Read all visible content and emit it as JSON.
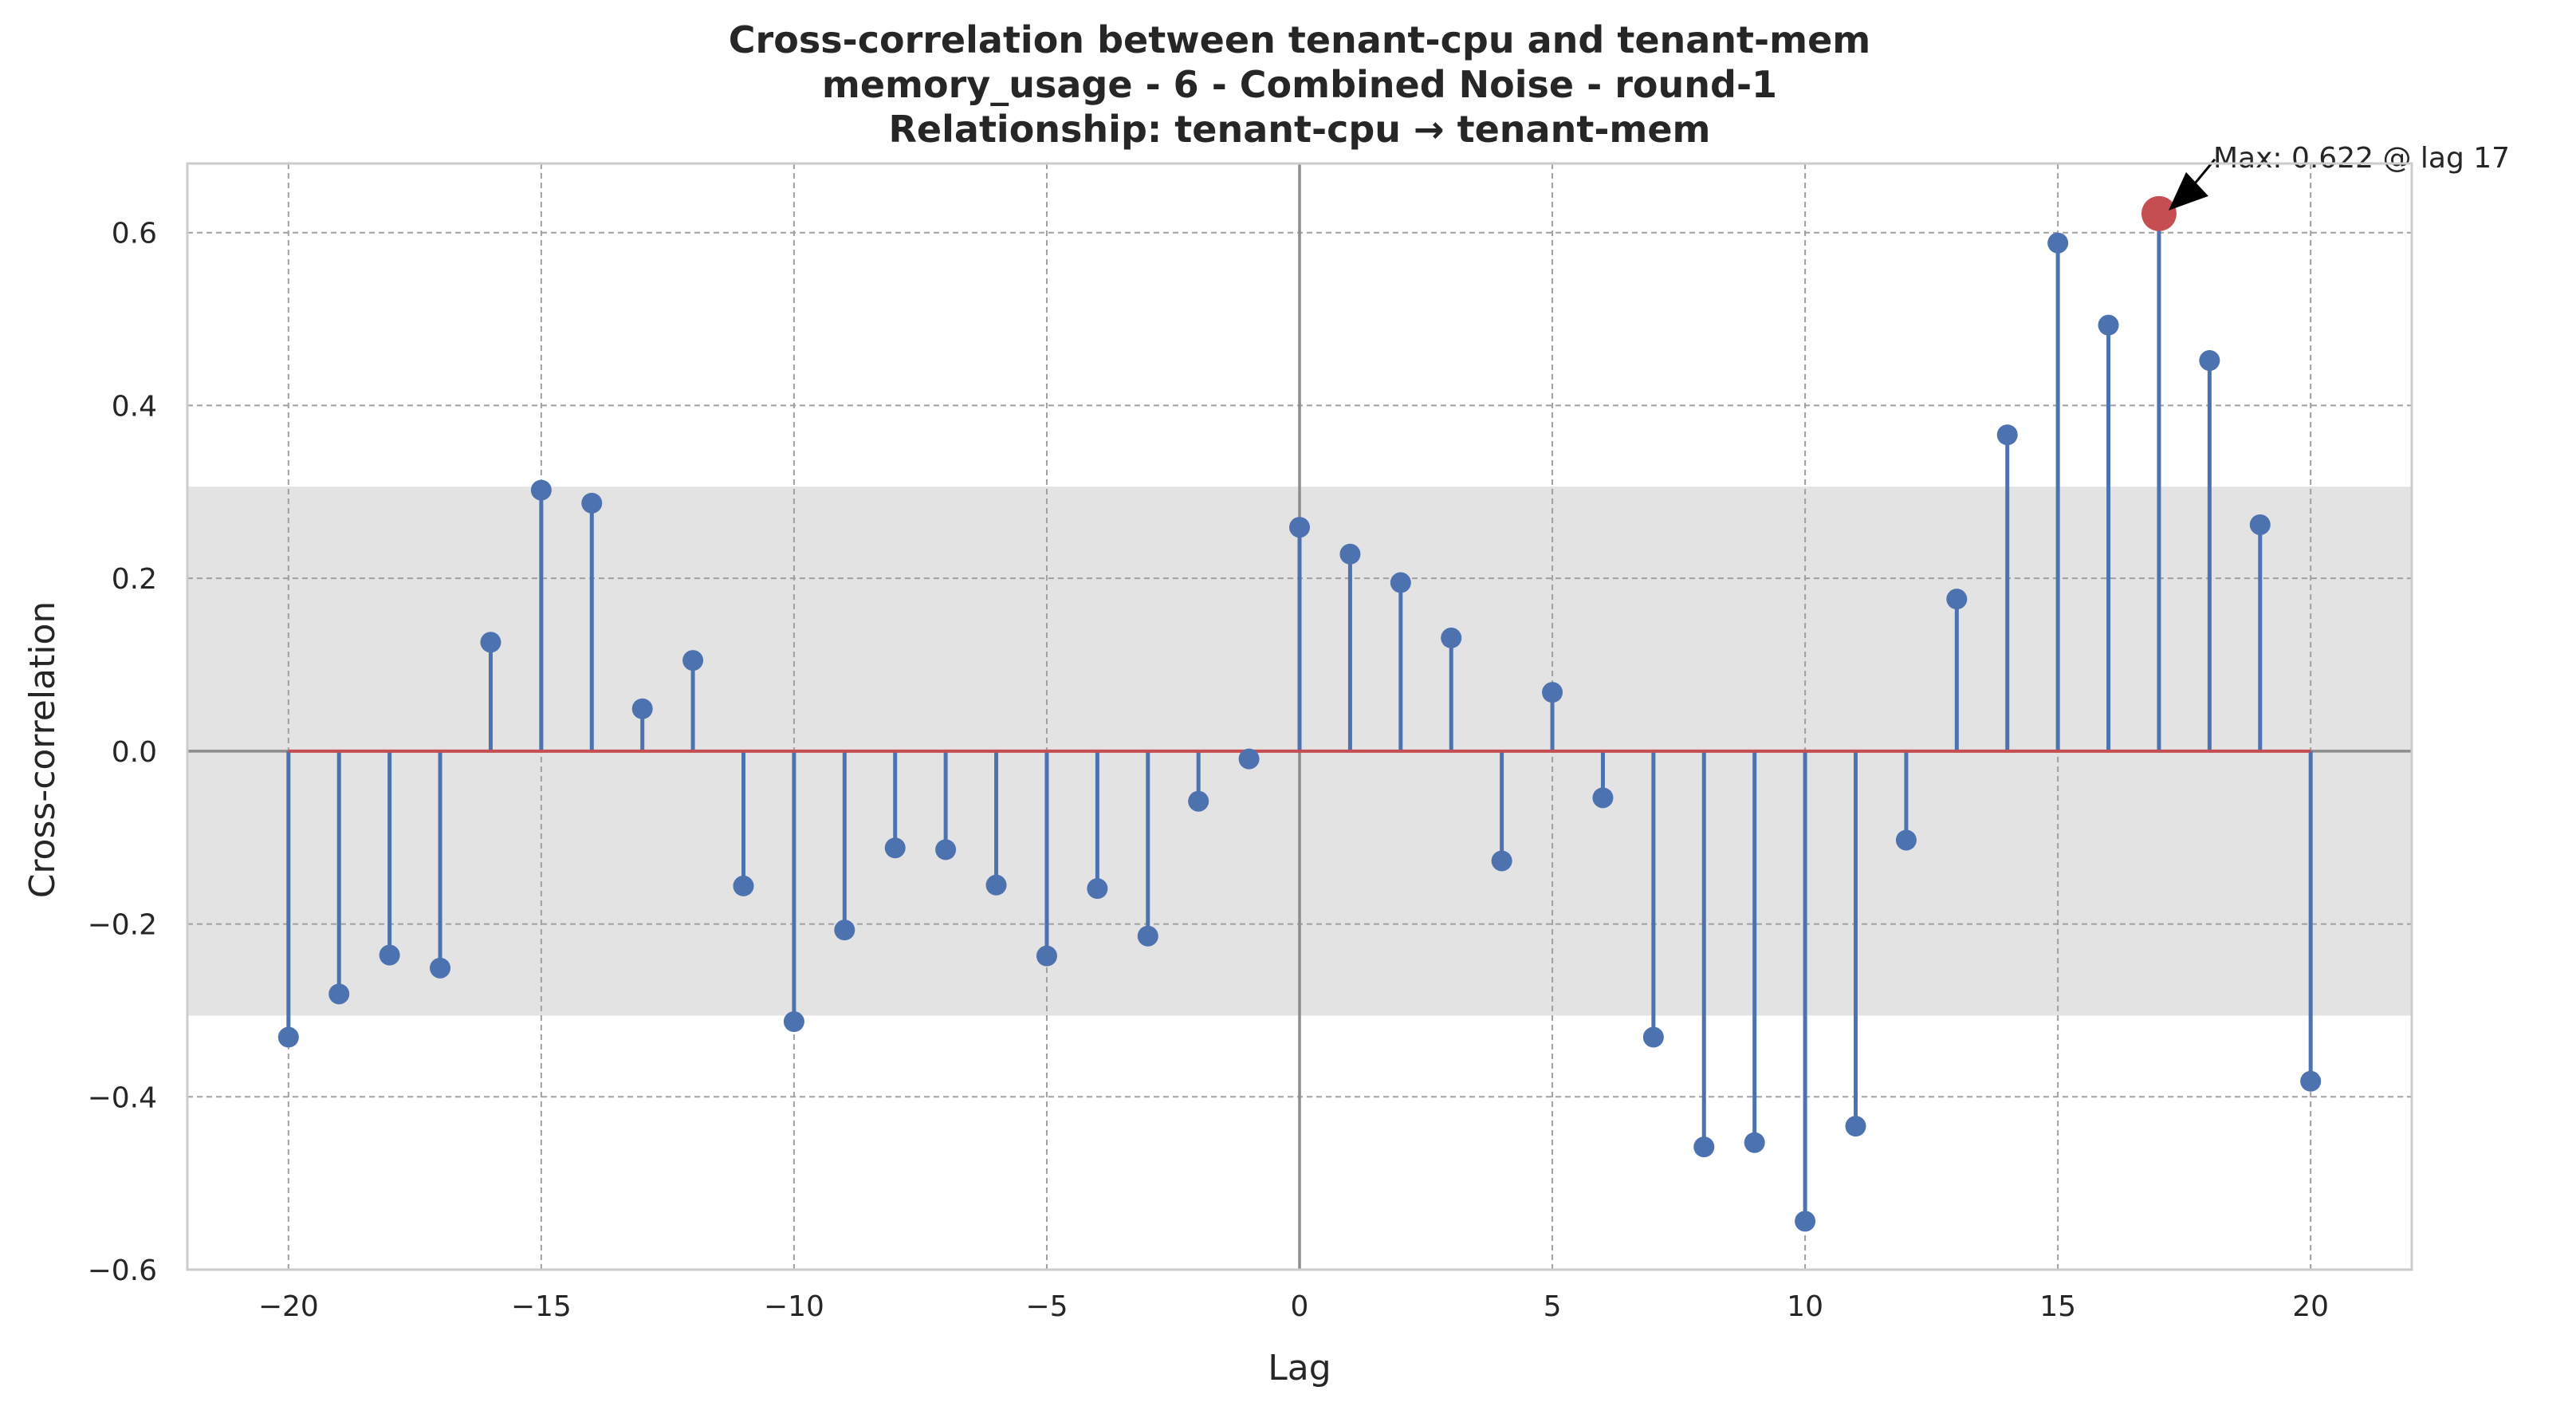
{
  "chart_data": {
    "type": "stem",
    "title_lines": [
      "Cross-correlation between tenant-cpu and tenant-mem",
      "memory_usage - 6 - Combined Noise - round-1",
      "Relationship: tenant-cpu → tenant-mem"
    ],
    "xlabel": "Lag",
    "ylabel": "Cross-correlation",
    "xlim": [
      -22,
      22
    ],
    "ylim": [
      -0.6,
      0.68
    ],
    "xticks": [
      -20,
      -15,
      -10,
      -5,
      0,
      5,
      10,
      15,
      20
    ],
    "xtick_labels": [
      "−20",
      "−15",
      "−10",
      "−5",
      "0",
      "5",
      "10",
      "15",
      "20"
    ],
    "yticks": [
      -0.6,
      -0.4,
      -0.2,
      0.0,
      0.2,
      0.4,
      0.6
    ],
    "ytick_labels": [
      "−0.6",
      "−0.4",
      "−0.2",
      "0.0",
      "0.2",
      "0.4",
      "0.6"
    ],
    "grid": true,
    "confidence_band": [
      -0.306,
      0.306
    ],
    "lags": [
      -20,
      -19,
      -18,
      -17,
      -16,
      -15,
      -14,
      -13,
      -12,
      -11,
      -10,
      -9,
      -8,
      -7,
      -6,
      -5,
      -4,
      -3,
      -2,
      -1,
      0,
      1,
      2,
      3,
      4,
      5,
      6,
      7,
      8,
      9,
      10,
      11,
      12,
      13,
      14,
      15,
      16,
      17,
      18,
      19,
      20
    ],
    "values": [
      -0.331,
      -0.281,
      -0.236,
      -0.251,
      0.126,
      0.302,
      0.287,
      0.049,
      0.105,
      -0.156,
      -0.313,
      -0.207,
      -0.112,
      -0.114,
      -0.155,
      -0.237,
      -0.159,
      -0.214,
      -0.058,
      -0.009,
      0.259,
      0.228,
      0.195,
      0.131,
      -0.127,
      0.068,
      -0.054,
      -0.331,
      -0.458,
      -0.453,
      -0.544,
      -0.434,
      -0.103,
      0.176,
      0.366,
      0.588,
      0.493,
      0.622,
      0.452,
      0.262,
      -0.382
    ],
    "max_point": {
      "lag": 17,
      "value": 0.622
    },
    "annotation": "Max: 0.622 @ lag 17",
    "colors": {
      "stem": "#4c72b0",
      "baseline": "#c44e52",
      "max_marker": "#c44e52",
      "band": "#e3e3e3",
      "grid": "#a0a0a0",
      "zero_lines": "#8c8c8c",
      "frame": "#cccccc",
      "arrow": "#000000"
    }
  }
}
